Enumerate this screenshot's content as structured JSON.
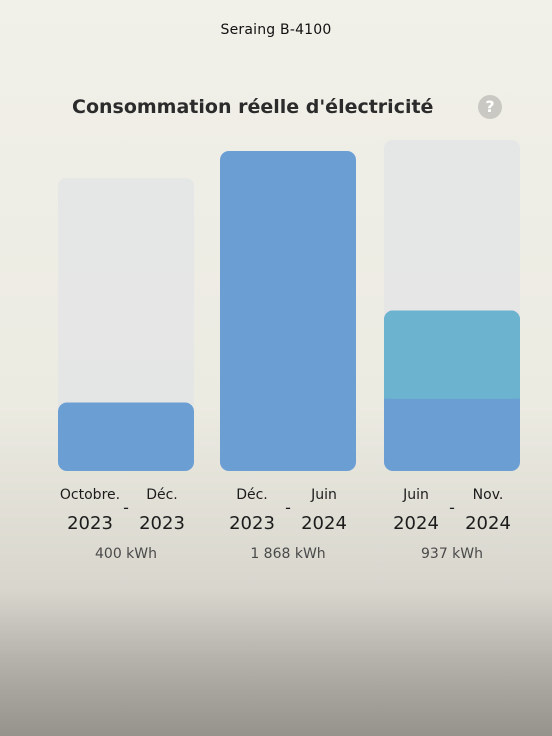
{
  "caption": "Seraing B-4100",
  "title": "Consommation réelle d'électricité",
  "help_icon": "question-circle-icon",
  "colors": {
    "bar": "#6b9fd4",
    "bar_highlight": "#6cb3cf",
    "bar_background": "#e2e4e6"
  },
  "chart_data": {
    "type": "bar",
    "title": "Consommation réelle d'électricité",
    "unit": "kWh",
    "ylim": [
      0,
      1868
    ],
    "grid": false,
    "periods": [
      {
        "start_month": "Octobre.",
        "start_year": "2023",
        "separator": "-",
        "end_month": "Déc.",
        "end_year": "2023",
        "value": 400,
        "value_label": "400 kWh"
      },
      {
        "start_month": "Déc.",
        "start_year": "2023",
        "separator": "-",
        "end_month": "Juin",
        "end_year": "2024",
        "value": 1868,
        "value_label": "1 868 kWh"
      },
      {
        "start_month": "Juin",
        "start_year": "2024",
        "separator": "-",
        "end_month": "Nov.",
        "end_year": "2024",
        "value": 937,
        "value_label": "937 kWh"
      }
    ]
  }
}
